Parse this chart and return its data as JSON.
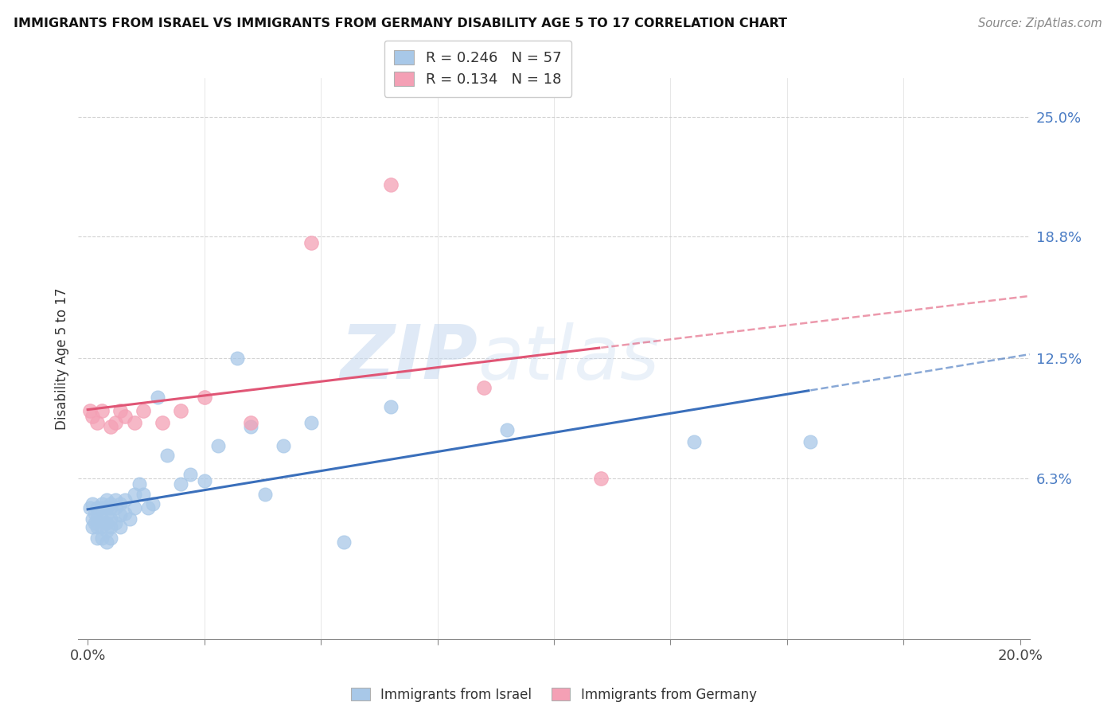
{
  "title": "IMMIGRANTS FROM ISRAEL VS IMMIGRANTS FROM GERMANY DISABILITY AGE 5 TO 17 CORRELATION CHART",
  "source": "Source: ZipAtlas.com",
  "ylabel": "Disability Age 5 to 17",
  "xlim": [
    -0.002,
    0.202
  ],
  "ylim": [
    -0.02,
    0.27
  ],
  "ytick_positions": [
    0.063,
    0.125,
    0.188,
    0.25
  ],
  "ytick_labels": [
    "6.3%",
    "12.5%",
    "18.8%",
    "25.0%"
  ],
  "legend_R_israel": "0.246",
  "legend_N_israel": "57",
  "legend_R_germany": "0.134",
  "legend_N_germany": "18",
  "color_israel": "#a8c8e8",
  "color_germany": "#f4a0b5",
  "line_color_israel": "#3a6fbb",
  "line_color_germany": "#e05575",
  "israel_x": [
    0.0005,
    0.001,
    0.001,
    0.001,
    0.0015,
    0.0015,
    0.002,
    0.002,
    0.002,
    0.002,
    0.003,
    0.003,
    0.003,
    0.003,
    0.003,
    0.004,
    0.004,
    0.004,
    0.004,
    0.004,
    0.004,
    0.005,
    0.005,
    0.005,
    0.005,
    0.005,
    0.006,
    0.006,
    0.006,
    0.007,
    0.007,
    0.007,
    0.008,
    0.008,
    0.009,
    0.01,
    0.01,
    0.011,
    0.012,
    0.013,
    0.014,
    0.015,
    0.017,
    0.02,
    0.022,
    0.025,
    0.028,
    0.032,
    0.035,
    0.038,
    0.042,
    0.048,
    0.055,
    0.065,
    0.09,
    0.13,
    0.155
  ],
  "israel_y": [
    0.048,
    0.05,
    0.042,
    0.038,
    0.045,
    0.04,
    0.048,
    0.042,
    0.038,
    0.032,
    0.05,
    0.048,
    0.042,
    0.038,
    0.032,
    0.052,
    0.048,
    0.044,
    0.04,
    0.036,
    0.03,
    0.05,
    0.048,
    0.042,
    0.038,
    0.032,
    0.052,
    0.048,
    0.04,
    0.05,
    0.044,
    0.038,
    0.052,
    0.045,
    0.042,
    0.055,
    0.048,
    0.06,
    0.055,
    0.048,
    0.05,
    0.105,
    0.075,
    0.06,
    0.065,
    0.062,
    0.08,
    0.125,
    0.09,
    0.055,
    0.08,
    0.092,
    0.03,
    0.1,
    0.088,
    0.082,
    0.082
  ],
  "germany_x": [
    0.0005,
    0.001,
    0.002,
    0.003,
    0.005,
    0.006,
    0.007,
    0.008,
    0.01,
    0.012,
    0.016,
    0.02,
    0.025,
    0.035,
    0.048,
    0.065,
    0.085,
    0.11
  ],
  "germany_y": [
    0.098,
    0.095,
    0.092,
    0.098,
    0.09,
    0.092,
    0.098,
    0.095,
    0.092,
    0.098,
    0.092,
    0.098,
    0.105,
    0.092,
    0.185,
    0.215,
    0.11,
    0.063
  ],
  "background_color": "#ffffff",
  "grid_color": "#c8c8c8",
  "israel_line_x_solid_end": 0.155,
  "germany_line_x_solid_end": 0.11
}
